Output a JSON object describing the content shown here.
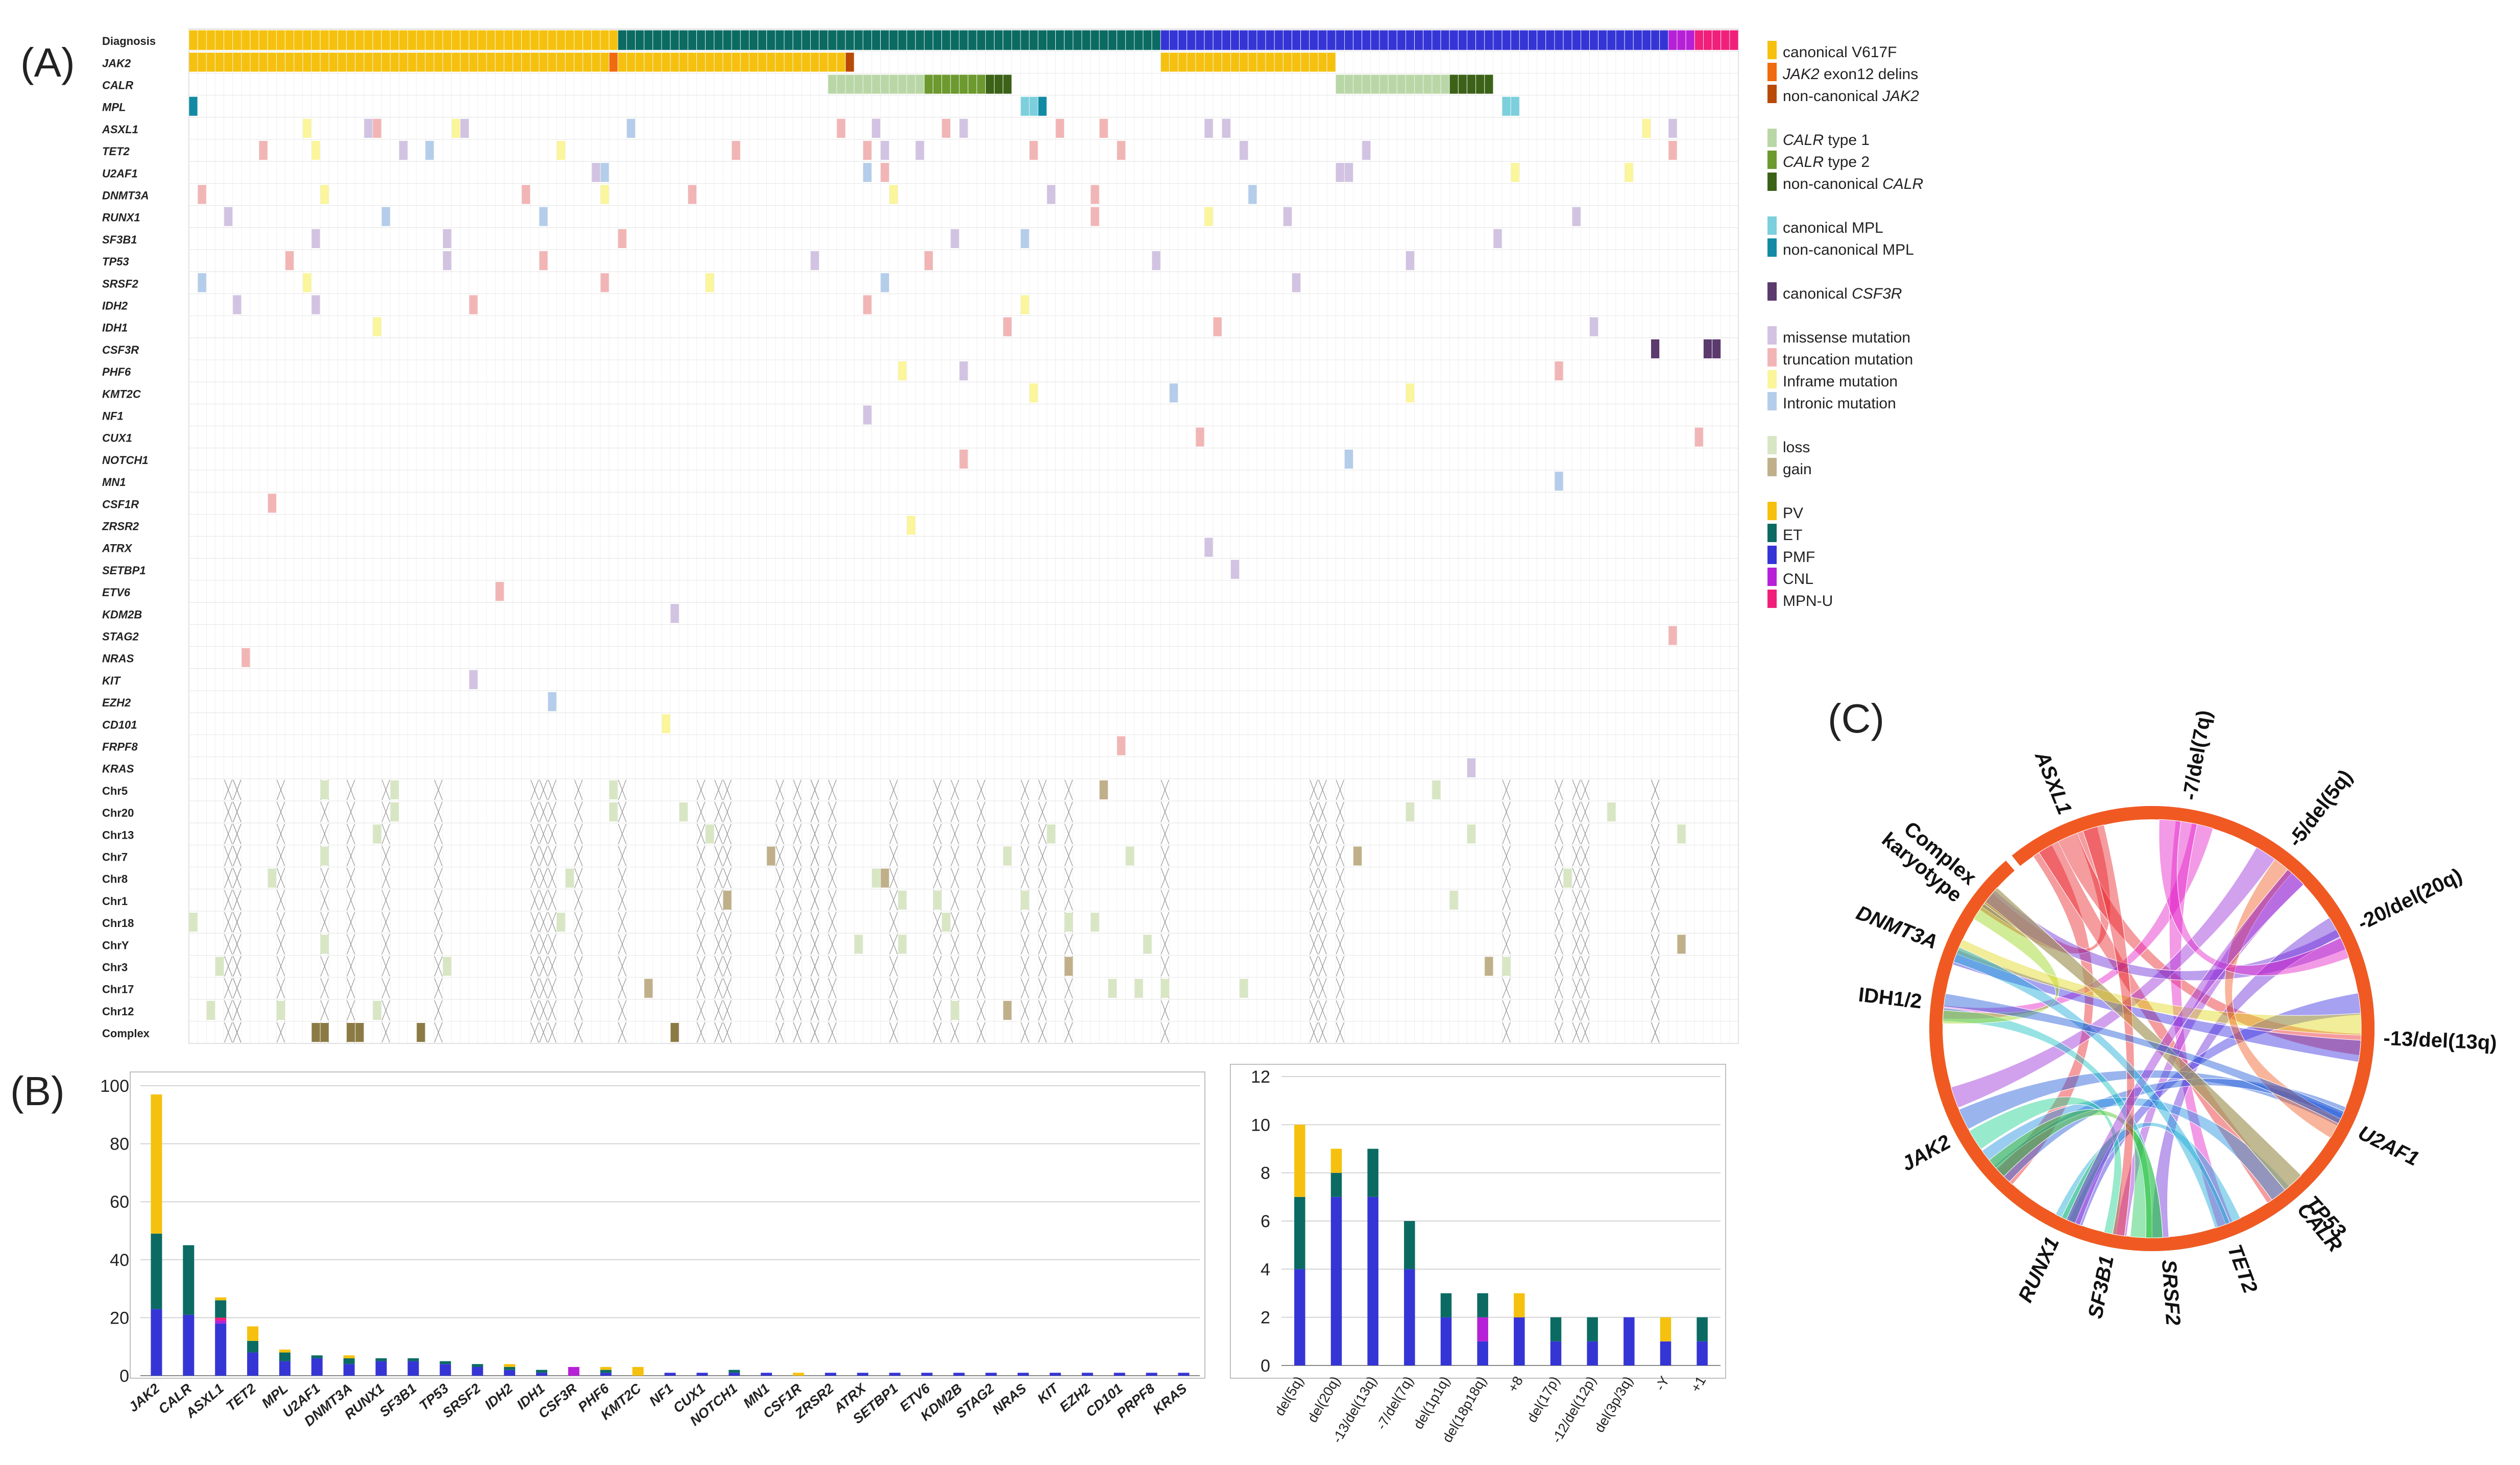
{
  "colors": {
    "pv": "#f5c10e",
    "et": "#0b6b63",
    "pmf": "#3535d6",
    "cnl": "#b620d6",
    "mpnu": "#f0207a",
    "jak2_exon12": "#f06a10",
    "jak2_noncanonical": "#b84a05",
    "calr_type1": "#b9d7a6",
    "calr_type2": "#6c9a2e",
    "calr_noncanonical": "#3c6218",
    "mpl_canonical": "#7ccfdc",
    "mpl_noncanonical": "#118ba3",
    "csf3r_canonical": "#5b3a6e",
    "missense": "#d2c3e2",
    "truncation": "#f2b5b5",
    "inframe": "#fbf59b",
    "intronic": "#b4cdea",
    "loss": "#d8e6c4",
    "gain": "#c0b08a",
    "complex": "#8c7a44",
    "cross": "#9a9a9a"
  },
  "panels": {
    "a": "(A)",
    "b": "(B)",
    "c": "(C)"
  },
  "oncoprint": {
    "rows": [
      "Diagnosis",
      "JAK2",
      "CALR",
      "MPL",
      "ASXL1",
      "TET2",
      "U2AF1",
      "DNMT3A",
      "RUNX1",
      "SF3B1",
      "TP53",
      "SRSF2",
      "IDH2",
      "IDH1",
      "CSF3R",
      "PHF6",
      "KMT2C",
      "NF1",
      "CUX1",
      "NOTCH1",
      "MN1",
      "CSF1R",
      "ZRSR2",
      "ATRX",
      "SETBP1",
      "ETV6",
      "KDM2B",
      "STAG2",
      "NRAS",
      "KIT",
      "EZH2",
      "CD101",
      "FRPF8",
      "KRAS",
      "Chr5",
      "Chr20",
      "Chr13",
      "Chr7",
      "Chr8",
      "Chr1",
      "Chr18",
      "ChrY",
      "Chr3",
      "Chr17",
      "Chr12",
      "Complex"
    ],
    "plain_rows": [
      "Diagnosis",
      "Chr5",
      "Chr20",
      "Chr13",
      "Chr7",
      "Chr8",
      "Chr1",
      "Chr18",
      "ChrY",
      "Chr3",
      "Chr17",
      "Chr12",
      "Complex"
    ],
    "diagnosis_segments": [
      {
        "type": "PV",
        "count": 49
      },
      {
        "type": "ET",
        "count": 62
      },
      {
        "type": "PMF",
        "count": 58
      },
      {
        "type": "CNL",
        "count": 3
      },
      {
        "type": "MPN-U",
        "count": 5
      }
    ]
  },
  "legend": [
    {
      "group": 1,
      "key": "pv",
      "parts": [
        [
          "canonical V617F",
          false
        ]
      ]
    },
    {
      "group": 1,
      "key": "jak2_exon12",
      "parts": [
        [
          "JAK2",
          true
        ],
        [
          " exon12 delins",
          false
        ]
      ]
    },
    {
      "group": 1,
      "key": "jak2_noncanonical",
      "parts": [
        [
          "non-canonical ",
          false
        ],
        [
          "JAK2",
          true
        ]
      ]
    },
    {
      "group": 2,
      "key": "calr_type1",
      "parts": [
        [
          "CALR",
          true
        ],
        [
          " type 1",
          false
        ]
      ]
    },
    {
      "group": 2,
      "key": "calr_type2",
      "parts": [
        [
          "CALR",
          true
        ],
        [
          " type 2",
          false
        ]
      ]
    },
    {
      "group": 2,
      "key": "calr_noncanonical",
      "parts": [
        [
          "non-canonical ",
          false
        ],
        [
          "CALR",
          true
        ]
      ]
    },
    {
      "group": 3,
      "key": "mpl_canonical",
      "parts": [
        [
          "canonical MPL",
          false
        ]
      ]
    },
    {
      "group": 3,
      "key": "mpl_noncanonical",
      "parts": [
        [
          "non-canonical MPL",
          false
        ]
      ]
    },
    {
      "group": 4,
      "key": "csf3r_canonical",
      "parts": [
        [
          "canonical ",
          false
        ],
        [
          "CSF3R",
          true
        ]
      ]
    },
    {
      "group": 5,
      "key": "missense",
      "parts": [
        [
          "missense mutation",
          false
        ]
      ]
    },
    {
      "group": 5,
      "key": "truncation",
      "parts": [
        [
          "truncation mutation",
          false
        ]
      ]
    },
    {
      "group": 5,
      "key": "inframe",
      "parts": [
        [
          "Inframe mutation",
          false
        ]
      ]
    },
    {
      "group": 5,
      "key": "intronic",
      "parts": [
        [
          "Intronic mutation",
          false
        ]
      ]
    },
    {
      "group": 6,
      "key": "loss",
      "parts": [
        [
          "loss",
          false
        ]
      ]
    },
    {
      "group": 6,
      "key": "gain",
      "parts": [
        [
          "gain",
          false
        ]
      ]
    },
    {
      "group": 7,
      "key": "pv",
      "parts": [
        [
          "PV",
          false
        ]
      ]
    },
    {
      "group": 7,
      "key": "et",
      "parts": [
        [
          "ET",
          false
        ]
      ]
    },
    {
      "group": 7,
      "key": "pmf",
      "parts": [
        [
          "PMF",
          false
        ]
      ]
    },
    {
      "group": 7,
      "key": "cnl",
      "parts": [
        [
          "CNL",
          false
        ]
      ]
    },
    {
      "group": 7,
      "key": "mpnu",
      "parts": [
        [
          "MPN-U",
          false
        ]
      ]
    }
  ],
  "chart_data": [
    {
      "type": "bar",
      "stacked": true,
      "categories": [
        "JAK2",
        "CALR",
        "ASXL1",
        "TET2",
        "MPL",
        "U2AF1",
        "DNMT3A",
        "RUNX1",
        "SF3B1",
        "TP53",
        "SRSF2",
        "IDH2",
        "IDH1",
        "CSF3R",
        "PHF6",
        "KMT2C",
        "NF1",
        "CUX1",
        "NOTCH1",
        "MN1",
        "CSF1R",
        "ZRSR2",
        "ATRX",
        "SETBP1",
        "ETV6",
        "KDM2B",
        "STAG2",
        "NRAS",
        "KIT",
        "EZH2",
        "CD101",
        "PRPF8",
        "KRAS"
      ],
      "series": [
        {
          "key": "pmf",
          "values": [
            23,
            21,
            18,
            8,
            5,
            6,
            4,
            5,
            5,
            4,
            3,
            2,
            1,
            0,
            1,
            0,
            1,
            1,
            1,
            1,
            0,
            1,
            1,
            1,
            1,
            1,
            1,
            1,
            1,
            1,
            1,
            1,
            1
          ]
        },
        {
          "key": "cnl",
          "values": [
            0,
            0,
            1,
            0,
            0,
            0,
            0,
            0,
            0,
            0,
            0,
            0,
            0,
            3,
            0,
            0,
            0,
            0,
            0,
            0,
            0,
            0,
            0,
            0,
            0,
            0,
            0,
            0,
            0,
            0,
            0,
            0,
            0
          ]
        },
        {
          "key": "mpnu",
          "values": [
            0,
            0,
            1,
            0,
            0,
            0,
            0,
            0,
            0,
            0,
            0,
            0,
            0,
            0,
            0,
            0,
            0,
            0,
            0,
            0,
            0,
            0,
            0,
            0,
            0,
            0,
            0,
            0,
            0,
            0,
            0,
            0,
            0
          ]
        },
        {
          "key": "et",
          "values": [
            26,
            24,
            6,
            4,
            3,
            1,
            2,
            1,
            1,
            1,
            1,
            1,
            1,
            0,
            1,
            0,
            0,
            0,
            1,
            0,
            0,
            0,
            0,
            0,
            0,
            0,
            0,
            0,
            0,
            0,
            0,
            0,
            0
          ]
        },
        {
          "key": "pv",
          "values": [
            48,
            0,
            1,
            5,
            1,
            0,
            1,
            0,
            0,
            0,
            0,
            1,
            0,
            0,
            1,
            3,
            0,
            0,
            0,
            0,
            1,
            0,
            0,
            0,
            0,
            0,
            0,
            0,
            0,
            0,
            0,
            0,
            0
          ]
        }
      ],
      "ylim": [
        0,
        100
      ],
      "yticks": [
        0,
        20,
        40,
        60,
        80,
        100
      ],
      "grid": true
    },
    {
      "type": "bar",
      "stacked": true,
      "categories": [
        "del(5q)",
        "del(20q)",
        "-13/del(13q)",
        "-7/del(7q)",
        "del(1p1q)",
        "del(18p18q)",
        "+8",
        "del(17p)",
        "-12/del(12p)",
        "del(3p/3q)",
        "-Y",
        "+1"
      ],
      "series": [
        {
          "key": "pmf",
          "values": [
            4,
            7,
            7,
            4,
            2,
            1,
            2,
            1,
            1,
            2,
            1,
            1
          ]
        },
        {
          "key": "cnl",
          "values": [
            0,
            0,
            0,
            0,
            0,
            1,
            0,
            0,
            0,
            0,
            0,
            0
          ]
        },
        {
          "key": "et",
          "values": [
            3,
            1,
            2,
            2,
            1,
            1,
            0,
            1,
            1,
            0,
            0,
            1
          ]
        },
        {
          "key": "pv",
          "values": [
            3,
            1,
            0,
            0,
            0,
            0,
            1,
            0,
            0,
            0,
            1,
            0
          ]
        }
      ],
      "ylim": [
        0,
        12
      ],
      "yticks": [
        0,
        2,
        4,
        6,
        8,
        10,
        12
      ],
      "grid": true
    },
    {
      "type": "chord",
      "sectors": [
        {
          "label": "ASXL1",
          "italic": true,
          "color": "#e8242b"
        },
        {
          "label": "-7/del(7q)",
          "italic": false,
          "color": "#e520c8"
        },
        {
          "label": "-5/del(5q)",
          "italic": false,
          "color": "#9b2fd6"
        },
        {
          "label": "-20/del(20q)",
          "italic": false,
          "color": "#6a2ad8"
        },
        {
          "label": "-13/del(13q)",
          "italic": false,
          "color": "#3a2fe0"
        },
        {
          "label": "U2AF1",
          "italic": true,
          "color": "#1f58d8"
        },
        {
          "label": "TP53",
          "italic": true,
          "color": "#1f8ee0"
        },
        {
          "label": "TET2",
          "italic": true,
          "color": "#19a8d8"
        },
        {
          "label": "SRSF2",
          "italic": true,
          "color": "#18c2c0"
        },
        {
          "label": "SF3B1",
          "italic": true,
          "color": "#1bd08e"
        },
        {
          "label": "RUNX1",
          "italic": true,
          "color": "#22c85c"
        },
        {
          "label": "JAK2",
          "italic": true,
          "color": "#3ec41c"
        },
        {
          "label": "IDH1/2",
          "italic": false,
          "color": "#9ad418"
        },
        {
          "label": "DNMT3A",
          "italic": true,
          "color": "#e0d81a"
        },
        {
          "label": "Complex karyotype",
          "italic": false,
          "color": "#f0a11e"
        },
        {
          "label": "CALR",
          "italic": true,
          "color": "#f05a22"
        }
      ]
    }
  ]
}
